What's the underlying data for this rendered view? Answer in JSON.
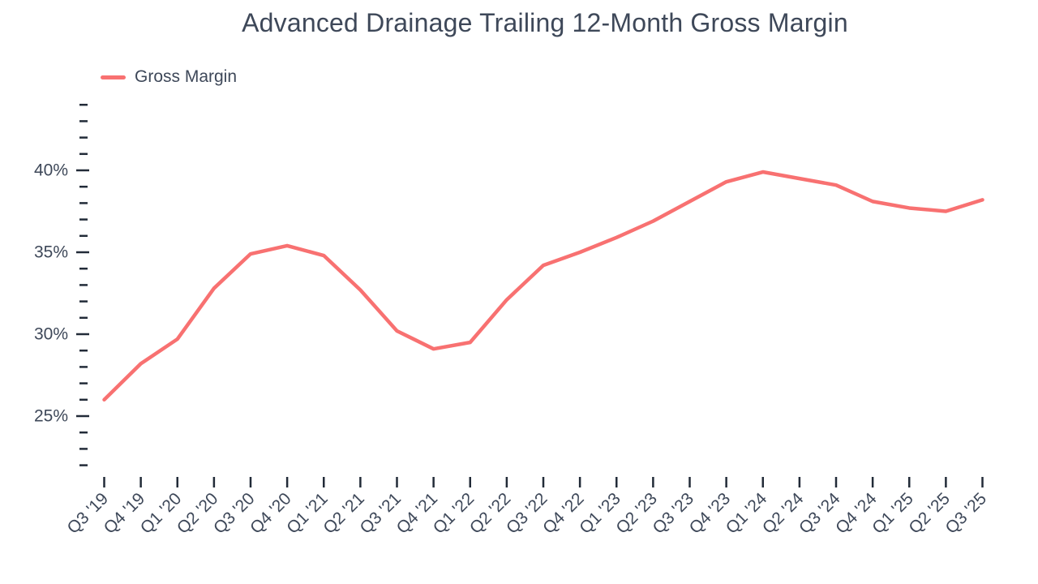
{
  "colors": {
    "line": "#f87171",
    "text": "#3e4859",
    "tick": "#222b38",
    "background": "#ffffff"
  },
  "legend": {
    "position": "top-left",
    "items": [
      {
        "label": "Gross Margin",
        "swatch_color": "#f87171"
      }
    ]
  },
  "chart_data": {
    "type": "line",
    "title": "Advanced Drainage Trailing 12-Month Gross Margin",
    "xlabel": "",
    "ylabel": "",
    "grid": false,
    "legend_position": "top-left",
    "categories": [
      "Q3 '19",
      "Q4 '19",
      "Q1 '20",
      "Q2 '20",
      "Q3 '20",
      "Q4 '20",
      "Q1 '21",
      "Q2 '21",
      "Q3 '21",
      "Q4 '21",
      "Q1 '22",
      "Q2 '22",
      "Q3 '22",
      "Q4 '22",
      "Q1 '23",
      "Q2 '23",
      "Q3 '23",
      "Q4 '23",
      "Q1 '24",
      "Q2 '24",
      "Q3 '24",
      "Q4 '24",
      "Q1 '25",
      "Q2 '25",
      "Q3 '25"
    ],
    "series": [
      {
        "name": "Gross Margin",
        "color": "#f87171",
        "unit": "%",
        "values": [
          26.0,
          28.2,
          29.7,
          32.8,
          34.9,
          35.4,
          34.8,
          32.7,
          30.2,
          29.1,
          29.5,
          32.1,
          34.2,
          35.0,
          35.9,
          36.9,
          38.1,
          39.3,
          39.9,
          39.5,
          39.1,
          38.1,
          37.7,
          37.5,
          38.2
        ]
      }
    ],
    "y_axis": {
      "unit": "%",
      "min": 22,
      "max": 44,
      "minor_tick_step": 1,
      "labeled_ticks": [
        25,
        30,
        35,
        40
      ],
      "tick_labels": [
        "25%",
        "30%",
        "35%",
        "40%"
      ]
    }
  }
}
